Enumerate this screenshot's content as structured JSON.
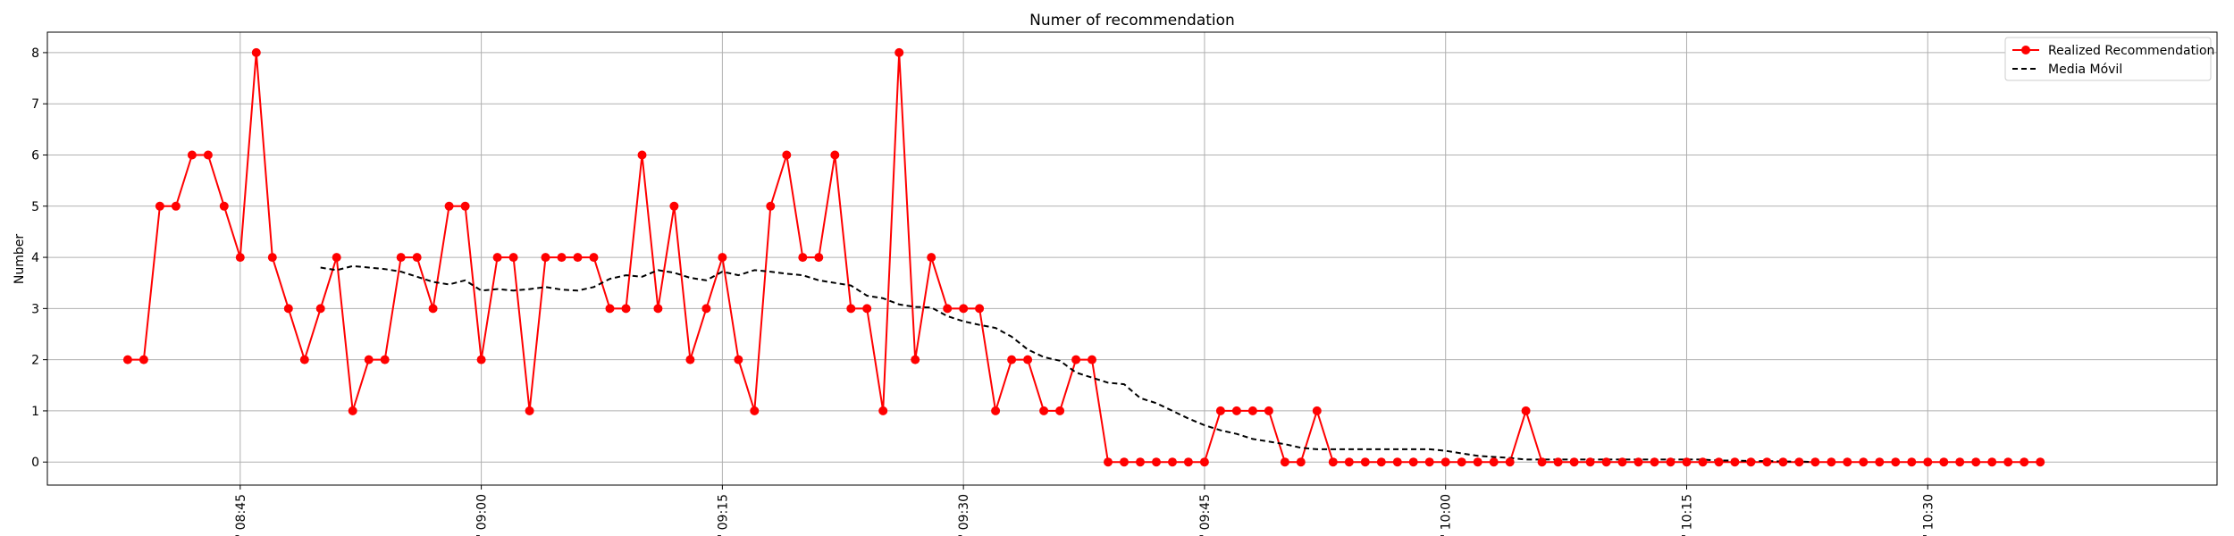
{
  "chart_data": {
    "type": "line",
    "title": "Numer of recommendation",
    "xlabel": "",
    "ylabel": "Number",
    "ylim": [
      -0.45,
      8.4
    ],
    "xlim": [
      "08:33",
      "10:48"
    ],
    "yticks": [
      0,
      1,
      2,
      3,
      4,
      5,
      6,
      7,
      8
    ],
    "xticks": [
      "08:45",
      "09:00",
      "09:15",
      "09:30",
      "09:45",
      "10:00",
      "10:15",
      "10:30"
    ],
    "xtick_labels": [
      "' 08:45",
      "' 09:00",
      "' 09:15",
      "' 09:30",
      "' 09:45",
      "' 10:00",
      "' 10:15",
      "' 10:30"
    ],
    "grid": true,
    "legend_position": "top-right",
    "series": [
      {
        "name": "Realized Recommendation",
        "color": "#ff0000",
        "marker": "circle",
        "style": "solid",
        "x": [
          "08:38",
          "08:39",
          "08:40",
          "08:41",
          "08:42",
          "08:43",
          "08:44",
          "08:45",
          "08:46",
          "08:47",
          "08:48",
          "08:49",
          "08:50",
          "08:51",
          "08:52",
          "08:53",
          "08:54",
          "08:55",
          "08:56",
          "08:57",
          "08:58",
          "08:59",
          "09:00",
          "09:01",
          "09:02",
          "09:03",
          "09:04",
          "09:05",
          "09:06",
          "09:07",
          "09:08",
          "09:09",
          "09:10",
          "09:11",
          "09:12",
          "09:13",
          "09:14",
          "09:15",
          "09:16",
          "09:17",
          "09:18",
          "09:19",
          "09:20",
          "09:21",
          "09:22",
          "09:23",
          "09:24",
          "09:25",
          "09:26",
          "09:27",
          "09:28",
          "09:29",
          "09:30",
          "09:31",
          "09:32",
          "09:33",
          "09:34",
          "09:35",
          "09:36",
          "09:37",
          "09:38",
          "09:39",
          "09:40",
          "09:41",
          "09:42",
          "09:43",
          "09:44",
          "09:45",
          "09:46",
          "09:47",
          "09:48",
          "09:49",
          "09:50",
          "09:51",
          "09:52",
          "09:53",
          "09:54",
          "09:55",
          "09:56",
          "09:57",
          "09:58",
          "09:59",
          "10:00",
          "10:01",
          "10:02",
          "10:03",
          "10:04",
          "10:05",
          "10:06",
          "10:07",
          "10:08",
          "10:09",
          "10:10",
          "10:11",
          "10:12",
          "10:13",
          "10:14",
          "10:15",
          "10:16",
          "10:17",
          "10:18",
          "10:19",
          "10:20",
          "10:21",
          "10:22",
          "10:23",
          "10:24",
          "10:25",
          "10:26",
          "10:27",
          "10:28",
          "10:29",
          "10:30",
          "10:31",
          "10:32",
          "10:33",
          "10:34",
          "10:35",
          "10:36",
          "10:37"
        ],
        "values": [
          2,
          2,
          5,
          5,
          6,
          6,
          5,
          4,
          8,
          4,
          3,
          2,
          3,
          4,
          1,
          2,
          2,
          4,
          4,
          3,
          5,
          5,
          2,
          4,
          4,
          1,
          4,
          4,
          4,
          4,
          3,
          3,
          6,
          3,
          5,
          2,
          3,
          4,
          2,
          1,
          5,
          6,
          4,
          4,
          6,
          3,
          3,
          1,
          8,
          2,
          4,
          3,
          3,
          3,
          1,
          2,
          2,
          1,
          1,
          2,
          2,
          0,
          0,
          0,
          0,
          0,
          0,
          0,
          1,
          1,
          1,
          1,
          0,
          0,
          1,
          0,
          0,
          0,
          0,
          0,
          0,
          0,
          0,
          0,
          0,
          0,
          0,
          1,
          0,
          0,
          0,
          0,
          0,
          0,
          0,
          0,
          0,
          0,
          0,
          0,
          0,
          0,
          0,
          0,
          0,
          0,
          0,
          0,
          0,
          0,
          0,
          0,
          0,
          0,
          0,
          0,
          0,
          0,
          0,
          0
        ]
      },
      {
        "name": "Media Móvil",
        "color": "#000000",
        "marker": "none",
        "style": "dashed",
        "x": [
          "08:50",
          "08:51",
          "08:52",
          "08:53",
          "08:54",
          "08:55",
          "08:56",
          "08:57",
          "08:58",
          "08:59",
          "09:00",
          "09:01",
          "09:02",
          "09:03",
          "09:04",
          "09:05",
          "09:06",
          "09:07",
          "09:08",
          "09:09",
          "09:10",
          "09:11",
          "09:12",
          "09:13",
          "09:14",
          "09:15",
          "09:16",
          "09:17",
          "09:18",
          "09:19",
          "09:20",
          "09:21",
          "09:22",
          "09:23",
          "09:24",
          "09:25",
          "09:26",
          "09:27",
          "09:28",
          "09:29",
          "09:30",
          "09:31",
          "09:32",
          "09:33",
          "09:34",
          "09:35",
          "09:36",
          "09:37",
          "09:38",
          "09:39",
          "09:40",
          "09:41",
          "09:42",
          "09:43",
          "09:44",
          "09:45",
          "09:46",
          "09:47",
          "09:48",
          "09:49",
          "09:50",
          "09:51",
          "09:52",
          "09:53",
          "09:54",
          "09:55",
          "09:56",
          "09:57",
          "09:58",
          "09:59",
          "10:00",
          "10:01",
          "10:02",
          "10:03",
          "10:04",
          "10:05",
          "10:06",
          "10:07",
          "10:08",
          "10:09",
          "10:10",
          "10:11",
          "10:12",
          "10:13",
          "10:14",
          "10:15",
          "10:16",
          "10:17",
          "10:18",
          "10:19",
          "10:20",
          "10:21",
          "10:22",
          "10:23"
        ],
        "values": [
          3.8,
          3.75,
          3.83,
          3.8,
          3.77,
          3.72,
          3.62,
          3.52,
          3.47,
          3.55,
          3.35,
          3.38,
          3.35,
          3.38,
          3.42,
          3.37,
          3.35,
          3.42,
          3.58,
          3.65,
          3.62,
          3.75,
          3.7,
          3.6,
          3.55,
          3.72,
          3.65,
          3.75,
          3.72,
          3.68,
          3.65,
          3.55,
          3.5,
          3.45,
          3.25,
          3.2,
          3.08,
          3.03,
          3.02,
          2.85,
          2.75,
          2.68,
          2.62,
          2.45,
          2.2,
          2.05,
          1.98,
          1.75,
          1.65,
          1.55,
          1.52,
          1.25,
          1.15,
          1.0,
          0.85,
          0.72,
          0.62,
          0.55,
          0.45,
          0.4,
          0.35,
          0.28,
          0.25,
          0.25,
          0.25,
          0.25,
          0.25,
          0.25,
          0.25,
          0.25,
          0.22,
          0.17,
          0.12,
          0.1,
          0.08,
          0.05,
          0.05,
          0.05,
          0.05,
          0.05,
          0.05,
          0.05,
          0.05,
          0.05,
          0.05,
          0.05,
          0.05,
          0.03,
          0.03,
          0.02,
          0.02,
          0.01,
          0.01,
          0.0
        ]
      }
    ]
  }
}
